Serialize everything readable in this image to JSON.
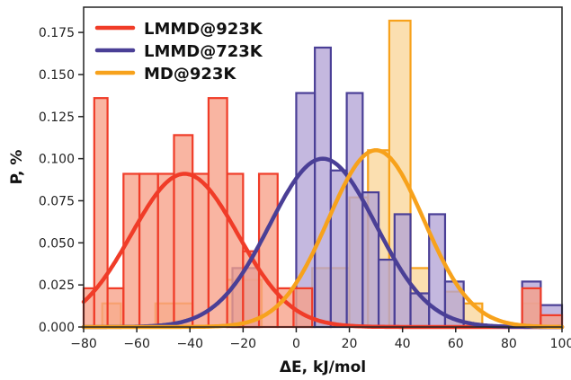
{
  "chart_data": {
    "type": "histogram",
    "title": "",
    "xlabel": "ΔE, kJ/mol",
    "ylabel": "P, %",
    "xlim": [
      -80,
      100
    ],
    "ylim": [
      0,
      0.19
    ],
    "xticks": [
      -80,
      -60,
      -40,
      -20,
      0,
      20,
      40,
      60,
      80,
      100
    ],
    "xtick_labels": [
      "−80",
      "−60",
      "−40",
      "−20",
      "0",
      "20",
      "40",
      "60",
      "80",
      "100"
    ],
    "yticks": [
      0,
      0.025,
      0.05,
      0.075,
      0.1,
      0.125,
      0.15,
      0.175
    ],
    "ytick_labels": [
      "0.000",
      "0.025",
      "0.050",
      "0.075",
      "0.100",
      "0.125",
      "0.150",
      "0.175"
    ],
    "legend_position": "top-left",
    "grid": false,
    "series": [
      {
        "name": "LMMD@923K",
        "color": "#f03c28",
        "fill": "#f7a088",
        "bins": [
          {
            "x0": -80,
            "x1": -76,
            "y": 0.023
          },
          {
            "x0": -76,
            "x1": -71,
            "y": 0.136
          },
          {
            "x0": -71,
            "x1": -65,
            "y": 0.023
          },
          {
            "x0": -65,
            "x1": -59,
            "y": 0.091
          },
          {
            "x0": -59,
            "x1": -52,
            "y": 0.091
          },
          {
            "x0": -52,
            "x1": -46,
            "y": 0.091
          },
          {
            "x0": -46,
            "x1": -39,
            "y": 0.114
          },
          {
            "x0": -39,
            "x1": -33,
            "y": 0.091
          },
          {
            "x0": -33,
            "x1": -26,
            "y": 0.136
          },
          {
            "x0": -26,
            "x1": -20,
            "y": 0.091
          },
          {
            "x0": -20,
            "x1": -14,
            "y": 0.045
          },
          {
            "x0": -14,
            "x1": -7,
            "y": 0.091
          },
          {
            "x0": -7,
            "x1": -1,
            "y": 0.023
          },
          {
            "x0": -1,
            "x1": 6,
            "y": 0.023
          },
          {
            "x0": 85,
            "x1": 92,
            "y": 0.023
          },
          {
            "x0": 92,
            "x1": 100,
            "y": 0.007
          }
        ],
        "gaussian": {
          "mean": -42,
          "sigma": 20,
          "peak": 0.091
        }
      },
      {
        "name": "LMMD@723K",
        "color": "#4a3f96",
        "fill": "#b4a4d6",
        "bins": [
          {
            "x0": -24,
            "x1": -14,
            "y": 0.035
          },
          {
            "x0": 0,
            "x1": 7,
            "y": 0.139
          },
          {
            "x0": 7,
            "x1": 13,
            "y": 0.166
          },
          {
            "x0": 13,
            "x1": 19,
            "y": 0.093
          },
          {
            "x0": 19,
            "x1": 25,
            "y": 0.139
          },
          {
            "x0": 25,
            "x1": 31,
            "y": 0.08
          },
          {
            "x0": 31,
            "x1": 37,
            "y": 0.04
          },
          {
            "x0": 37,
            "x1": 43,
            "y": 0.067
          },
          {
            "x0": 43,
            "x1": 50,
            "y": 0.02
          },
          {
            "x0": 50,
            "x1": 56,
            "y": 0.067
          },
          {
            "x0": 56,
            "x1": 63,
            "y": 0.027
          },
          {
            "x0": 85,
            "x1": 92,
            "y": 0.027
          },
          {
            "x0": 92,
            "x1": 100,
            "y": 0.013
          }
        ],
        "gaussian": {
          "mean": 10,
          "sigma": 20,
          "peak": 0.1
        }
      },
      {
        "name": "MD@923K",
        "color": "#f7a21c",
        "fill": "#fad69a",
        "bins": [
          {
            "x0": -73,
            "x1": -66,
            "y": 0.014
          },
          {
            "x0": -53,
            "x1": -46,
            "y": 0.014
          },
          {
            "x0": -46,
            "x1": -39,
            "y": 0.014
          },
          {
            "x0": -26,
            "x1": -13,
            "y": 0.028
          },
          {
            "x0": 6,
            "x1": 13,
            "y": 0.035
          },
          {
            "x0": 13,
            "x1": 20,
            "y": 0.035
          },
          {
            "x0": 20,
            "x1": 27,
            "y": 0.077
          },
          {
            "x0": 27,
            "x1": 35,
            "y": 0.105
          },
          {
            "x0": 35,
            "x1": 43,
            "y": 0.182
          },
          {
            "x0": 43,
            "x1": 50,
            "y": 0.035
          },
          {
            "x0": 56,
            "x1": 63,
            "y": 0.021
          },
          {
            "x0": 63,
            "x1": 70,
            "y": 0.014
          },
          {
            "x0": 85,
            "x1": 92,
            "y": 0.014
          }
        ],
        "gaussian": {
          "mean": 30,
          "sigma": 18,
          "peak": 0.105
        }
      }
    ]
  }
}
